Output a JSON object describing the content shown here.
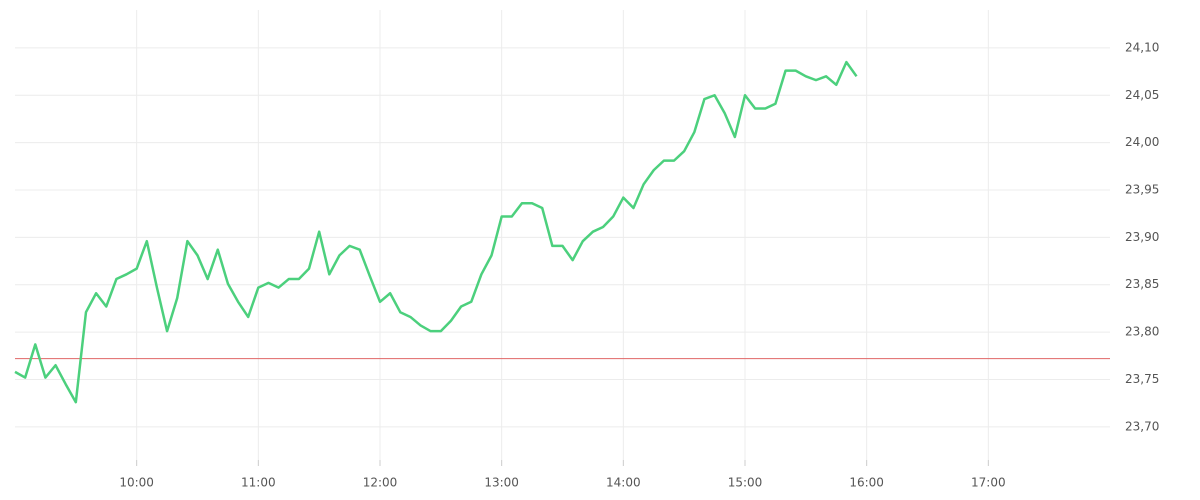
{
  "chart_data": {
    "type": "line",
    "x": [
      "09:00",
      "09:05",
      "09:10",
      "09:15",
      "09:20",
      "09:25",
      "09:30",
      "09:35",
      "09:40",
      "09:45",
      "09:50",
      "09:55",
      "10:00",
      "10:05",
      "10:10",
      "10:15",
      "10:20",
      "10:25",
      "10:30",
      "10:35",
      "10:40",
      "10:45",
      "10:50",
      "10:55",
      "11:00",
      "11:05",
      "11:10",
      "11:15",
      "11:20",
      "11:25",
      "11:30",
      "11:35",
      "11:40",
      "11:45",
      "11:50",
      "11:55",
      "12:00",
      "12:05",
      "12:10",
      "12:15",
      "12:20",
      "12:25",
      "12:30",
      "12:35",
      "12:40",
      "12:45",
      "12:50",
      "12:55",
      "13:00",
      "13:05",
      "13:10",
      "13:15",
      "13:20",
      "13:25",
      "13:30",
      "13:35",
      "13:40",
      "13:45",
      "13:50",
      "13:55",
      "14:00",
      "14:05",
      "14:10",
      "14:15",
      "14:20",
      "14:25",
      "14:30",
      "14:35",
      "14:40",
      "14:45",
      "14:50",
      "14:55",
      "15:00",
      "15:05",
      "15:10",
      "15:15",
      "15:20",
      "15:25",
      "15:30",
      "15:35",
      "15:40",
      "15:45",
      "15:50",
      "15:55"
    ],
    "series": [
      {
        "color": "#4cd07d",
        "values": [
          23.758,
          23.752,
          23.787,
          23.752,
          23.765,
          23.745,
          23.726,
          23.821,
          23.841,
          23.827,
          23.856,
          23.861,
          23.867,
          23.896,
          23.847,
          23.801,
          23.836,
          23.896,
          23.881,
          23.856,
          23.887,
          23.851,
          23.832,
          23.816,
          23.847,
          23.852,
          23.847,
          23.856,
          23.856,
          23.867,
          23.906,
          23.861,
          23.881,
          23.891,
          23.887,
          23.859,
          23.832,
          23.841,
          23.821,
          23.816,
          23.807,
          23.801,
          23.801,
          23.812,
          23.827,
          23.832,
          23.861,
          23.881,
          23.922,
          23.922,
          23.936,
          23.936,
          23.931,
          23.891,
          23.891,
          23.876,
          23.896,
          23.906,
          23.911,
          23.922,
          23.942,
          23.931,
          23.956,
          23.971,
          23.981,
          23.981,
          23.991,
          24.011,
          24.046,
          24.05,
          24.031,
          24.006,
          24.05,
          24.036,
          24.036,
          24.041,
          24.076,
          24.076,
          24.07,
          24.066,
          24.07,
          24.061,
          24.085,
          24.07
        ]
      }
    ],
    "xlim": [
      "09:00",
      "18:00"
    ],
    "xticks": [
      "10:00",
      "11:00",
      "12:00",
      "13:00",
      "14:00",
      "15:00",
      "16:00",
      "17:00"
    ],
    "ylim": [
      23.665,
      24.14
    ],
    "yticks": [
      {
        "value": 23.7,
        "label": "23,70"
      },
      {
        "value": 23.75,
        "label": "23,75"
      },
      {
        "value": 23.8,
        "label": "23,80"
      },
      {
        "value": 23.85,
        "label": "23,85"
      },
      {
        "value": 23.9,
        "label": "23,90"
      },
      {
        "value": 23.95,
        "label": "23,95"
      },
      {
        "value": 24.0,
        "label": "24,00"
      },
      {
        "value": 24.05,
        "label": "24,05"
      },
      {
        "value": 24.1,
        "label": "24,10"
      }
    ],
    "reference_line": {
      "value": 23.772,
      "color": "#e06666"
    },
    "grid": true
  }
}
